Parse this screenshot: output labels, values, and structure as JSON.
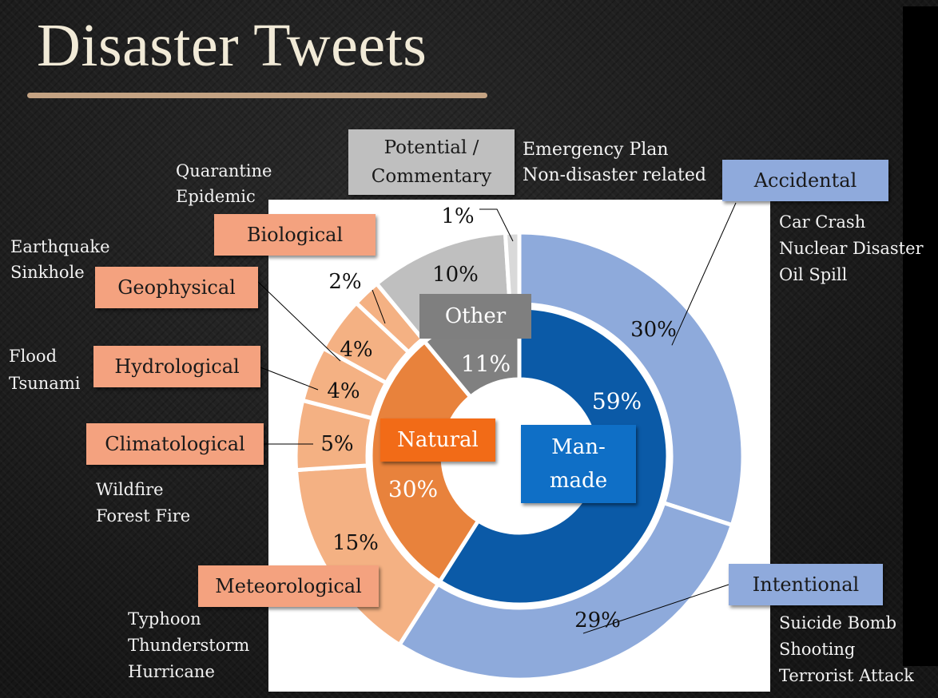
{
  "title": "Disaster Tweets",
  "chart_data": {
    "type": "pie",
    "inner_ring": [
      {
        "label": "Man-made",
        "value": 59,
        "value_label": "59%",
        "color": "#0b5aa7"
      },
      {
        "label": "Natural",
        "value": 30,
        "value_label": "30%",
        "color": "#e8823c"
      },
      {
        "label": "Other",
        "value": 11,
        "value_label": "11%",
        "color": "#808080"
      }
    ],
    "outer_ring": [
      {
        "label": "Accidental",
        "value": 30,
        "value_label": "30%",
        "color": "#8eaadb",
        "examples": [
          "Car Crash",
          "Nuclear Disaster",
          "Oil Spill"
        ]
      },
      {
        "label": "Intentional",
        "value": 29,
        "value_label": "29%",
        "color": "#8eaadb",
        "examples": [
          "Suicide Bomb",
          "Shooting",
          "Terrorist Attack"
        ]
      },
      {
        "label": "Meteorological",
        "value": 15,
        "value_label": "15%",
        "color": "#f4b183",
        "examples": [
          "Typhoon",
          "Thunderstorm",
          "Hurricane"
        ]
      },
      {
        "label": "Climatological",
        "value": 5,
        "value_label": "5%",
        "color": "#f4b183",
        "examples": [
          "Wildfire",
          "Forest Fire"
        ]
      },
      {
        "label": "Hydrological",
        "value": 4,
        "value_label": "4%",
        "color": "#f4b183",
        "examples": [
          "Flood",
          "Tsunami"
        ]
      },
      {
        "label": "Geophysical",
        "value": 4,
        "value_label": "4%",
        "color": "#f4b183",
        "examples": [
          "Earthquake",
          "Sinkhole"
        ]
      },
      {
        "label": "Biological",
        "value": 2,
        "value_label": "2%",
        "color": "#f4b183",
        "examples": [
          "Quarantine",
          "Epidemic"
        ]
      },
      {
        "label": "Potential / Commentary",
        "value": 10,
        "value_label": "10%",
        "color": "#bfbfbf",
        "examples": [
          "Emergency Plan",
          "Non-disaster related"
        ]
      },
      {
        "label": "",
        "value": 1,
        "value_label": "1%",
        "color": "#d9d9d9",
        "examples": []
      }
    ]
  }
}
